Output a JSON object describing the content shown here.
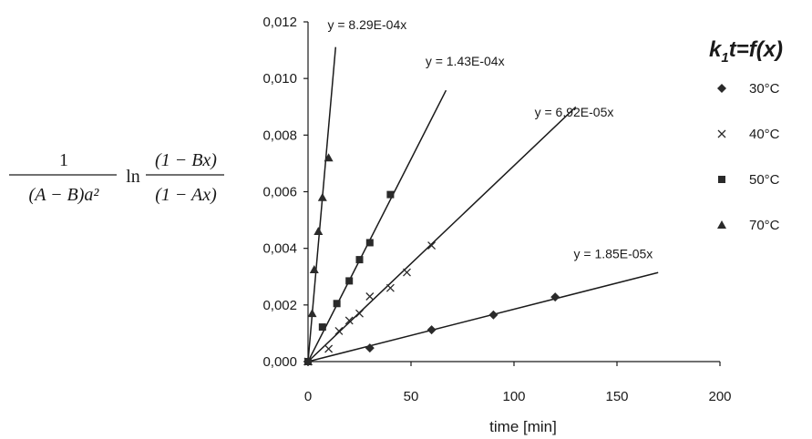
{
  "chart_data": {
    "type": "scatter",
    "xlabel": "time [min]",
    "ylabel_formula": {
      "numerator": "1",
      "denominator": "(A − B)a²",
      "ln": "ln",
      "frac_numerator": "(1 − Bx)",
      "frac_denominator": "(1 − Ax)"
    },
    "xlim": [
      0,
      200
    ],
    "ylim": [
      0,
      0.012
    ],
    "x_ticks": [
      0,
      50,
      100,
      150,
      200
    ],
    "x_tick_labels": [
      "0",
      "50",
      "100",
      "150",
      "200"
    ],
    "y_ticks": [
      0,
      0.002,
      0.004,
      0.006,
      0.008,
      0.01,
      0.012
    ],
    "y_tick_labels": [
      "0,000",
      "0,002",
      "0,004",
      "0,006",
      "0,008",
      "0,010",
      "0,012"
    ],
    "grid": false,
    "legend_title": {
      "base": "k",
      "sub": "1",
      "rest": "t=f(x)"
    },
    "legend_position": "right",
    "series": [
      {
        "name": "30°C",
        "marker": "diamond",
        "slope": 1.85e-05,
        "equation": "y = 1.85E-05x",
        "fit_x_end": 170,
        "x": [
          0,
          30,
          60,
          90,
          120
        ],
        "y": [
          0,
          0.00048,
          0.00112,
          0.00165,
          0.00228
        ]
      },
      {
        "name": "40°C",
        "marker": "x",
        "slope": 6.92e-05,
        "equation": "y = 6.92E-05x",
        "fit_x_end": 130,
        "x": [
          0,
          10,
          15,
          20,
          25,
          30,
          40,
          48,
          60
        ],
        "y": [
          0,
          0.00045,
          0.00108,
          0.00145,
          0.0017,
          0.0023,
          0.0026,
          0.00315,
          0.0041
        ]
      },
      {
        "name": "50°C",
        "marker": "square",
        "slope": 0.000143,
        "equation": "y = 1.43E-04x",
        "fit_x_end": 67,
        "x": [
          0,
          7,
          14,
          20,
          25,
          30,
          40
        ],
        "y": [
          0,
          0.00122,
          0.00205,
          0.00285,
          0.0036,
          0.0042,
          0.0059
        ]
      },
      {
        "name": "70°C",
        "marker": "triangle",
        "slope": 0.000829,
        "equation": "y = 8.29E-04x",
        "fit_x_end": 13.4,
        "x": [
          0,
          2,
          3,
          5,
          7,
          10
        ],
        "y": [
          0,
          0.0017,
          0.00325,
          0.0046,
          0.0058,
          0.0072
        ]
      }
    ],
    "equation_labels": [
      {
        "series": "70°C",
        "x": 9.5,
        "y": 0.01175
      },
      {
        "series": "50°C",
        "x": 57,
        "y": 0.01045
      },
      {
        "series": "40°C",
        "x": 110,
        "y": 0.00865
      },
      {
        "series": "30°C",
        "x": 129,
        "y": 0.00365
      }
    ]
  }
}
